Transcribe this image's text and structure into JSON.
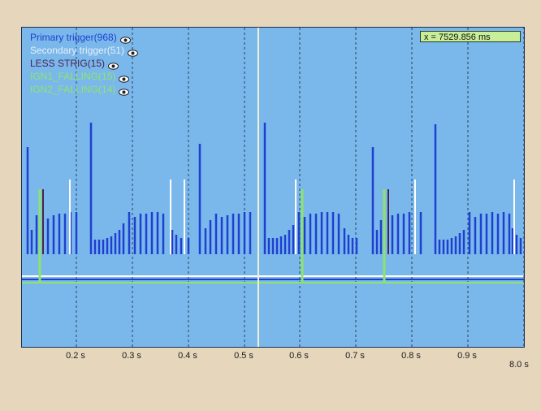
{
  "legend": {
    "items": [
      {
        "label": "Primary trigger(968)",
        "color": "#1f3fd0",
        "icon": "eye-icon"
      },
      {
        "label": "Secondary trigger(51)",
        "color": "#e8eef6",
        "icon": "eye-icon"
      },
      {
        "label": "LESS STRIG(15)",
        "color": "#4a2450",
        "icon": "eye-icon"
      },
      {
        "label": "IGN1_FALLING(15)",
        "color": "#8ee46a",
        "icon": "eye-icon"
      },
      {
        "label": "IGN2_FALLING(14)",
        "color": "#8ee46a",
        "icon": "eye-icon"
      }
    ]
  },
  "cursor": {
    "readout": "x = 7529.856 ms",
    "color": "#f2f2d0"
  },
  "axis": {
    "ticks": [
      {
        "value": 0.2,
        "label": "0.2 s"
      },
      {
        "value": 0.3,
        "label": "0.3 s"
      },
      {
        "value": 0.4,
        "label": "0.4 s"
      },
      {
        "value": 0.5,
        "label": "0.5 s"
      },
      {
        "value": 0.6,
        "label": "0.6 s"
      },
      {
        "value": 0.7,
        "label": "0.7 s"
      },
      {
        "value": 0.8,
        "label": "0.8 s"
      },
      {
        "value": 0.9,
        "label": "0.9 s"
      }
    ],
    "end_label": "8.0 s"
  },
  "colors": {
    "plot_background": "#7ab8ec",
    "primary": "#1f3fd0",
    "secondary": "#ffffff",
    "less_strig": "#4a2450",
    "ign": "#8ee46a",
    "grid": "#2c3e5c"
  }
}
